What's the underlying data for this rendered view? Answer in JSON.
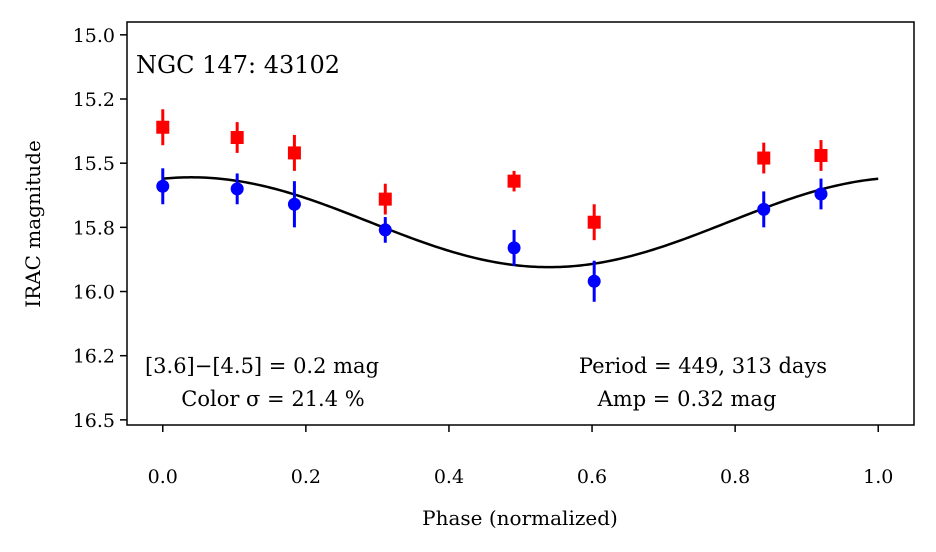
{
  "chart_data": {
    "type": "scatter",
    "title": "NGC 147:  43102",
    "xlabel": "Phase (normalized)",
    "ylabel": "IRAC magnitude",
    "xlim": [
      -0.05,
      1.05
    ],
    "ylim": [
      16.52,
      14.95
    ],
    "y_inverted": true,
    "grid": false,
    "xticks": [
      0.0,
      0.2,
      0.4,
      0.6,
      0.8,
      1.0
    ],
    "xtick_labels": [
      "0.0",
      "0.2",
      "0.4",
      "0.6",
      "0.8",
      "1.0"
    ],
    "yticks": [
      15.0,
      15.25,
      15.5,
      15.75,
      16.0,
      16.25,
      16.5
    ],
    "ytick_labels": [
      "15.0",
      "15.2",
      "15.5",
      "15.8",
      "16.0",
      "16.2",
      "16.5"
    ],
    "series": [
      {
        "name": "[4.5]",
        "color": "#ff0000",
        "marker": "square",
        "x": [
          0.0,
          0.104,
          0.184,
          0.311,
          0.491,
          0.603,
          0.84,
          0.92
        ],
        "y": [
          15.36,
          15.4,
          15.46,
          15.64,
          15.57,
          15.73,
          15.48,
          15.47
        ],
        "yerr": [
          0.07,
          0.06,
          0.07,
          0.06,
          0.04,
          0.07,
          0.06,
          0.06
        ]
      },
      {
        "name": "[3.6]",
        "color": "#0000ff",
        "marker": "circle",
        "x": [
          0.0,
          0.104,
          0.184,
          0.311,
          0.491,
          0.603,
          0.84,
          0.92
        ],
        "y": [
          15.59,
          15.6,
          15.66,
          15.76,
          15.83,
          15.96,
          15.68,
          15.62
        ],
        "yerr": [
          0.07,
          0.06,
          0.09,
          0.05,
          0.07,
          0.08,
          0.07,
          0.06
        ]
      }
    ],
    "model": {
      "name": "sinusoid fit",
      "color": "#000000",
      "type": "sine",
      "mean": 15.73,
      "amplitude": 0.175,
      "peak_phase": 0.04
    },
    "annotations": {
      "color_diff": "[3.6]−[4.5] = 0.2 mag",
      "color_sigma": "Color σ = 21.4 %",
      "period": "Period = 449, 313 days",
      "amp": "Amp = 0.32 mag"
    }
  }
}
